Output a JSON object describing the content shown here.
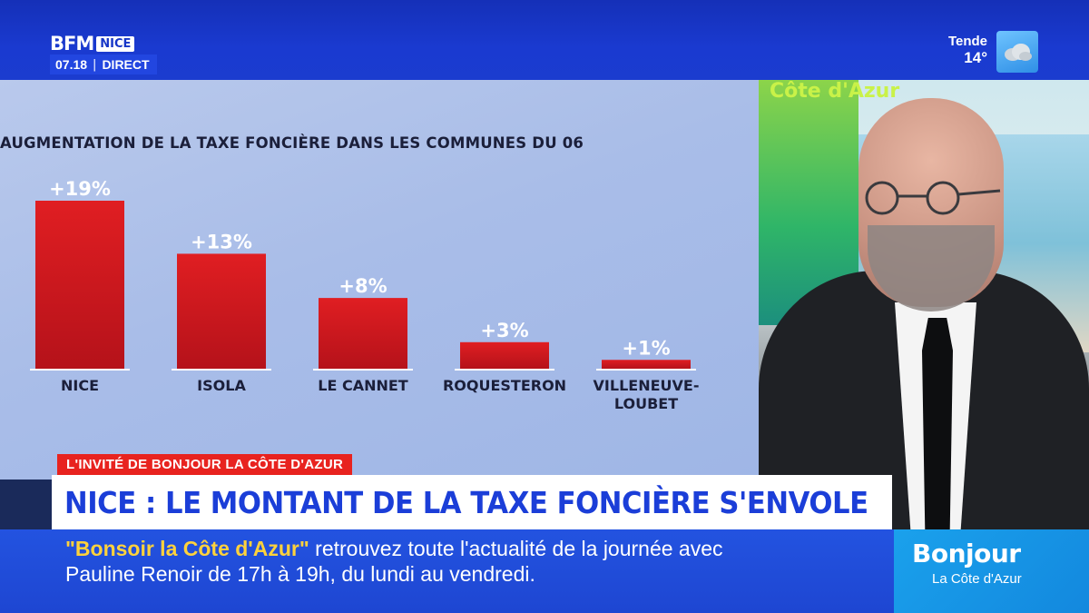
{
  "channel": {
    "brand": "BFM",
    "region": "NICE",
    "time": "07.18",
    "separator": "|",
    "status": "DIRECT"
  },
  "weather": {
    "city": "Tende",
    "temperature": "14°",
    "icon": "cloud-icon"
  },
  "studio": {
    "backdrop_text": "Côte d'Azur"
  },
  "chart_data": {
    "type": "bar",
    "title": "AUGMENTATION DE LA TAXE FONCIÈRE DANS LES COMMUNES DU 06",
    "categories": [
      [
        "NICE"
      ],
      [
        "ISOLA"
      ],
      [
        "LE CANNET"
      ],
      [
        "ROQUESTERON"
      ],
      [
        "VILLENEUVE-",
        "LOUBET"
      ]
    ],
    "values": [
      19,
      13,
      8,
      3,
      1
    ],
    "value_labels": [
      "+19%",
      "+13%",
      "+8%",
      "+3%",
      "+1%"
    ],
    "unit": "%",
    "ylim": [
      0,
      19
    ],
    "grid": false,
    "bar_color": "#e01e22"
  },
  "lower_third": {
    "tag": "L'INVITÉ DE BONJOUR LA CÔTE D'AZUR",
    "headline": "NICE : LE MONTANT DE LA TAXE FONCIÈRE S'ENVOLE"
  },
  "ticker": {
    "highlight": "\"Bonsoir la Côte d'Azur\"",
    "line1_rest": " retrouvez toute l'actualité de la journée avec",
    "line2": "Pauline Renoir de 17h à 19h, du lundi au vendredi."
  },
  "show": {
    "title": "Bonjour",
    "subtitle": "La Côte d'Azur"
  },
  "colors": {
    "brand_blue": "#1b3ccf",
    "tag_red": "#e8231f",
    "ticker_highlight": "#ffd23c",
    "show_blue": "#1aa1ec"
  }
}
